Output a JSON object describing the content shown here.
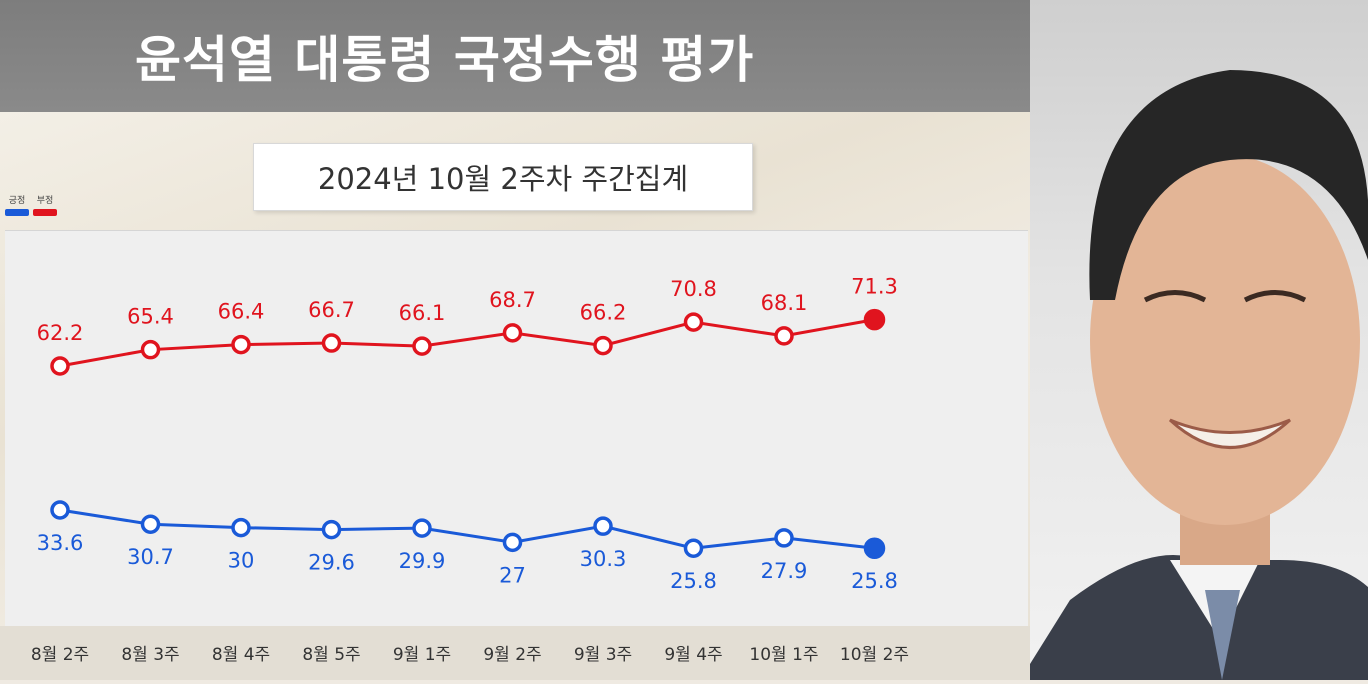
{
  "header": {
    "title": "윤석열 대통령 국정수행 평가"
  },
  "subtitle": "2024년 10월 2주차 주간집계",
  "legend": [
    {
      "label": "긍정",
      "color": "#1a5ad8"
    },
    {
      "label": "부정",
      "color": "#e0141e"
    }
  ],
  "photo": {
    "description_icon": "person-photo"
  },
  "chart_data": {
    "type": "line",
    "title": "윤석열 대통령 국정수행 평가",
    "subtitle": "2024년 10월 2주차 주간집계",
    "categories": [
      "8월 2주",
      "8월 3주",
      "8월 4주",
      "8월 5주",
      "9월 1주",
      "9월 2주",
      "9월 3주",
      "9월 4주",
      "10월 1주",
      "10월 2주"
    ],
    "series": [
      {
        "name": "부정",
        "color": "#e0141e",
        "values": [
          62.2,
          65.4,
          66.4,
          66.7,
          66.1,
          68.7,
          66.2,
          70.8,
          68.1,
          71.3
        ]
      },
      {
        "name": "긍정",
        "color": "#1a5ad8",
        "values": [
          33.6,
          30.7,
          30.0,
          29.6,
          29.9,
          27.0,
          30.3,
          25.8,
          27.9,
          25.8
        ]
      }
    ],
    "legend_position": "top-left",
    "grid": false
  }
}
